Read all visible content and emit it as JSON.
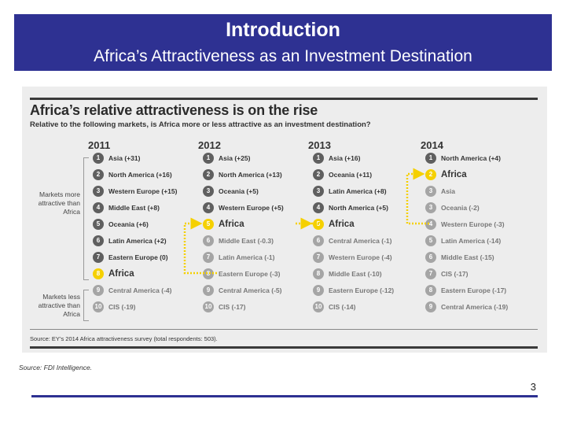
{
  "header": {
    "title": "Introduction",
    "subtitle": "Africa’s Attractiveness as an Investment Destination"
  },
  "chart": {
    "title": "Africa’s relative attractiveness is on the rise",
    "subtitle": "Relative to the following markets, is Africa more or less attractive as an investment destination?",
    "more_label": "Markets more attractive than Africa",
    "less_label": "Markets less attractive than Africa",
    "source": "Source: EY’s 2014 Africa attractiveness survey (total respondents: 503).",
    "years": [
      {
        "year": "2011",
        "items": [
          {
            "rank": "1",
            "label": "Asia (+31)"
          },
          {
            "rank": "2",
            "label": "North America (+16)"
          },
          {
            "rank": "3",
            "label": "Western Europe (+15)"
          },
          {
            "rank": "4",
            "label": "Middle East (+8)"
          },
          {
            "rank": "5",
            "label": "Oceania (+6)"
          },
          {
            "rank": "6",
            "label": "Latin America (+2)"
          },
          {
            "rank": "7",
            "label": "Eastern Europe (0)"
          },
          {
            "rank": "8",
            "label": "Africa"
          },
          {
            "rank": "9",
            "label": "Central America (-4)"
          },
          {
            "rank": "10",
            "label": "CIS (-19)"
          }
        ]
      },
      {
        "year": "2012",
        "items": [
          {
            "rank": "1",
            "label": "Asia (+25)"
          },
          {
            "rank": "2",
            "label": "North America (+13)"
          },
          {
            "rank": "3",
            "label": "Oceania (+5)"
          },
          {
            "rank": "4",
            "label": "Western Europe (+5)"
          },
          {
            "rank": "5",
            "label": "Africa"
          },
          {
            "rank": "6",
            "label": "Middle East (-0.3)"
          },
          {
            "rank": "7",
            "label": "Latin America (-1)"
          },
          {
            "rank": "8",
            "label": "Eastern Europe (-3)"
          },
          {
            "rank": "9",
            "label": "Central America (-5)"
          },
          {
            "rank": "10",
            "label": "CIS (-17)"
          }
        ]
      },
      {
        "year": "2013",
        "items": [
          {
            "rank": "1",
            "label": "Asia (+16)"
          },
          {
            "rank": "2",
            "label": "Oceania (+11)"
          },
          {
            "rank": "3",
            "label": "Latin America (+8)"
          },
          {
            "rank": "4",
            "label": "North America (+5)"
          },
          {
            "rank": "5",
            "label": "Africa"
          },
          {
            "rank": "6",
            "label": "Central America (-1)"
          },
          {
            "rank": "7",
            "label": "Western Europe (-4)"
          },
          {
            "rank": "8",
            "label": "Middle East (-10)"
          },
          {
            "rank": "9",
            "label": "Eastern Europe (-12)"
          },
          {
            "rank": "10",
            "label": "CIS (-14)"
          }
        ]
      },
      {
        "year": "2014",
        "items": [
          {
            "rank": "1",
            "label": "North America (+4)"
          },
          {
            "rank": "2",
            "label": "Africa"
          },
          {
            "rank": "3",
            "label": "Asia"
          },
          {
            "rank": "3",
            "label": "Oceania (-2)"
          },
          {
            "rank": "4",
            "label": "Western Europe (-3)"
          },
          {
            "rank": "5",
            "label": "Latin America (-14)"
          },
          {
            "rank": "6",
            "label": "Middle East (-15)"
          },
          {
            "rank": "7",
            "label": "CIS (-17)"
          },
          {
            "rank": "8",
            "label": "Eastern Europe (-17)"
          },
          {
            "rank": "9",
            "label": "Central America (-19)"
          }
        ]
      }
    ]
  },
  "source_note": "Source: FDI Intelligence.",
  "page_number": "3",
  "colors": {
    "header_bg": "#2e3192",
    "highlight": "#f5d000",
    "badge_dark": "#5f5f5f",
    "badge_light": "#a5a5a5"
  }
}
